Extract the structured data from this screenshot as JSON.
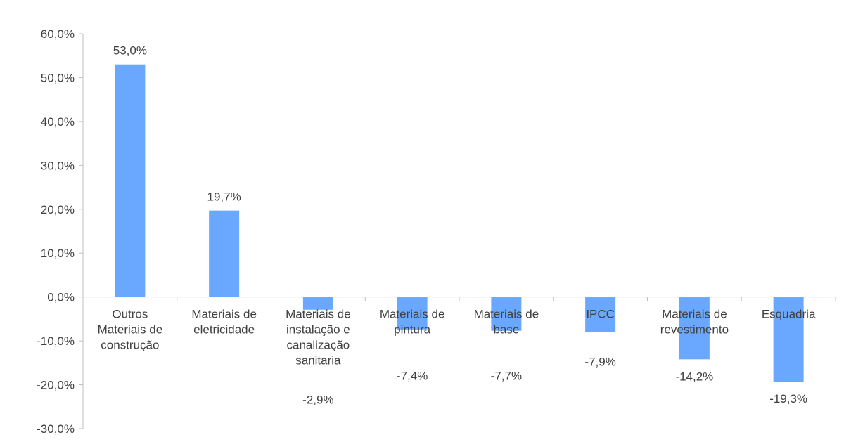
{
  "chart_data": {
    "type": "bar",
    "categories": [
      "Outros Materiais de construção",
      "Materiais de eletricidade",
      "Materiais de instalação e canalização sanitaria",
      "Materiais de pintura",
      "Materiais de base",
      "IPCC",
      "Materiais de revestimento",
      "Esquadria"
    ],
    "category_lines": [
      [
        "Outros",
        "Materiais de",
        "construção"
      ],
      [
        "Materiais de",
        "eletricidade"
      ],
      [
        "Materiais de",
        "instalação e",
        "canalização",
        "sanitaria"
      ],
      [
        "Materiais de",
        "pintura"
      ],
      [
        "Materiais de",
        "base"
      ],
      [
        "IPCC"
      ],
      [
        "Materiais de",
        "revestimento"
      ],
      [
        "Esquadria"
      ]
    ],
    "values": [
      53.0,
      19.7,
      -2.9,
      -7.4,
      -7.7,
      -7.9,
      -14.2,
      -19.3
    ],
    "data_labels": [
      "53,0%",
      "19,7%",
      "-2,9%",
      "-7,4%",
      "-7,7%",
      "-7,9%",
      "-14,2%",
      "-19,3%"
    ],
    "ylim": [
      -30,
      60
    ],
    "y_ticks": [
      60,
      50,
      40,
      30,
      20,
      10,
      0,
      -10,
      -20,
      -30
    ],
    "y_tick_labels": [
      "60,0%",
      "50,0%",
      "40,0%",
      "30,0%",
      "20,0%",
      "10,0%",
      "0,0%",
      "-10,0%",
      "-20,0%",
      "-30,0%"
    ],
    "bar_color": "#6aa8ff",
    "grid": false,
    "legend": "none"
  }
}
